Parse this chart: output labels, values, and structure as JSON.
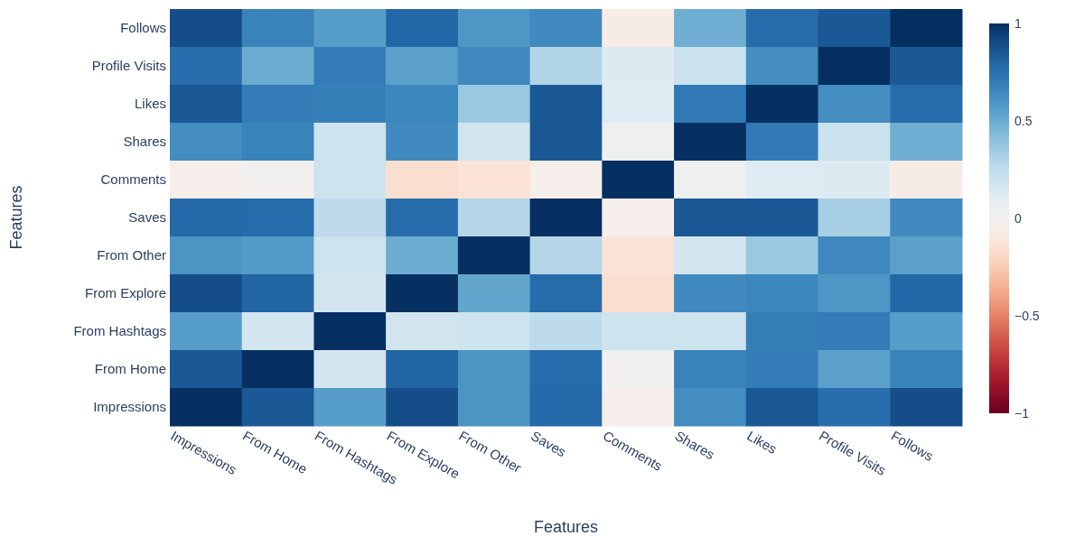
{
  "chart_data": {
    "type": "heatmap",
    "xlabel": "Features",
    "ylabel": "Features",
    "categories": [
      "Impressions",
      "From Home",
      "From Hashtags",
      "From Explore",
      "From Other",
      "Saves",
      "Comments",
      "Shares",
      "Likes",
      "Profile Visits",
      "Follows"
    ],
    "y_categories": [
      "Follows",
      "Profile Visits",
      "Likes",
      "Shares",
      "Comments",
      "Saves",
      "From Other",
      "From Explore",
      "From Hashtags",
      "From Home",
      "Impressions"
    ],
    "cells": [
      [
        0.89,
        0.67,
        0.56,
        0.79,
        0.59,
        0.64,
        -0.06,
        0.49,
        0.77,
        0.85,
        1
      ],
      [
        0.76,
        0.5,
        0.7,
        0.55,
        0.65,
        0.3,
        0.13,
        0.21,
        0.63,
        1,
        0.85
      ],
      [
        0.85,
        0.7,
        0.69,
        0.66,
        0.37,
        0.85,
        0.12,
        0.71,
        1,
        0.63,
        0.77
      ],
      [
        0.63,
        0.67,
        0.2,
        0.64,
        0.18,
        0.85,
        0.03,
        1,
        0.71,
        0.21,
        0.49
      ],
      [
        -0.03,
        0.01,
        0.2,
        -0.16,
        -0.13,
        -0.03,
        1,
        0.03,
        0.12,
        0.13,
        -0.06
      ],
      [
        0.78,
        0.77,
        0.26,
        0.77,
        0.29,
        1,
        -0.03,
        0.85,
        0.85,
        0.33,
        0.64
      ],
      [
        0.6,
        0.57,
        0.2,
        0.5,
        1,
        0.29,
        -0.13,
        0.18,
        0.37,
        0.65,
        0.55
      ],
      [
        0.89,
        0.8,
        0.18,
        1,
        0.53,
        0.77,
        -0.16,
        0.64,
        0.66,
        0.59,
        0.79
      ],
      [
        0.56,
        0.17,
        1,
        0.18,
        0.2,
        0.26,
        0.2,
        0.2,
        0.69,
        0.7,
        0.56
      ],
      [
        0.85,
        1,
        0.17,
        0.8,
        0.6,
        0.77,
        0.01,
        0.67,
        0.7,
        0.55,
        0.67
      ],
      [
        1,
        0.85,
        0.56,
        0.89,
        0.6,
        0.78,
        -0.03,
        0.63,
        0.85,
        0.76,
        0.89
      ]
    ],
    "clim": [
      -1,
      1
    ],
    "cticks": [
      {
        "value": -1,
        "label": "−1"
      },
      {
        "value": -0.5,
        "label": "−0.5"
      },
      0,
      0.5,
      1
    ]
  }
}
